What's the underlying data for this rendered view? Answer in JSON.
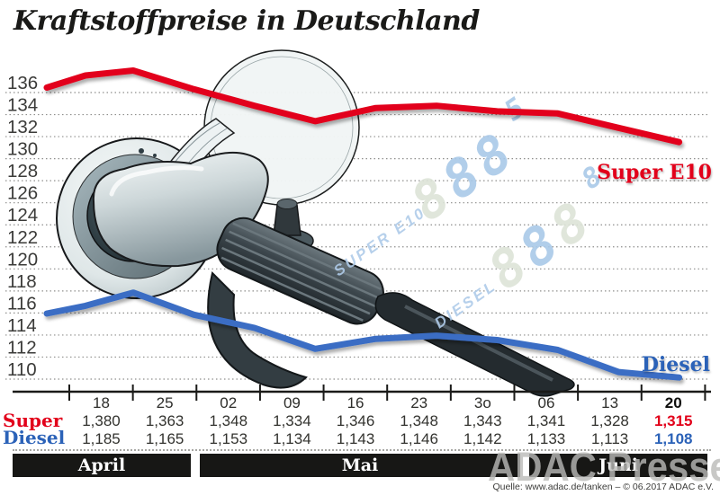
{
  "title": "Kraftstoffpreise in Deutschland",
  "source": "Quelle: www.adac.de/tanken – © 06.2017  ADAC e.V.",
  "brand_watermark": "ADAC Presse",
  "months": [
    {
      "label": "April",
      "dates": [
        "18",
        "25"
      ]
    },
    {
      "label": "Mai",
      "dates": [
        "02",
        "09",
        "16",
        "23",
        "3o"
      ]
    },
    {
      "label": "Juni",
      "dates": [
        "06",
        "13",
        "20"
      ]
    }
  ],
  "pump_display": {
    "line1_label": "SUPER E10",
    "line1_digits": "888",
    "line1_sup": "5",
    "line2_label": "DIESEL",
    "line2_digits": "888",
    "line2_sup": "8"
  },
  "table": {
    "dates": [
      "18",
      "25",
      "02",
      "09",
      "16",
      "23",
      "3o",
      "06",
      "13",
      "20"
    ],
    "rows": [
      {
        "label": "Super",
        "color": "#e2001a",
        "values": [
          "1,380",
          "1,363",
          "1,348",
          "1,334",
          "1,346",
          "1,348",
          "1,343",
          "1,341",
          "1,328",
          "1,315"
        ]
      },
      {
        "label": "Diesel",
        "color": "#2b62b8",
        "values": [
          "1,185",
          "1,165",
          "1,153",
          "1,134",
          "1,143",
          "1,146",
          "1,142",
          "1,133",
          "1,113",
          "1,108"
        ]
      }
    ]
  },
  "chart_data": {
    "type": "line",
    "title": "Kraftstoffpreise in Deutschland",
    "categories": [
      "18",
      "25",
      "02",
      "09",
      "16",
      "23",
      "3o",
      "06",
      "13",
      "20"
    ],
    "month_groups": [
      {
        "label": "April",
        "from": "18",
        "to": "25"
      },
      {
        "label": "Mai",
        "from": "02",
        "to": "3o"
      },
      {
        "label": "Juni",
        "from": "06",
        "to": "20"
      }
    ],
    "ylim": [
      110,
      136
    ],
    "y_tick_step": 2,
    "grid": "dotted-horizontal",
    "legend_position": "right-of-line-end",
    "series": [
      {
        "name": "Super E10",
        "color": "#e2001a",
        "values": [
          138.0,
          136.3,
          134.8,
          133.4,
          134.6,
          134.8,
          134.3,
          134.1,
          132.8,
          131.5
        ]
      },
      {
        "name": "Diesel",
        "color": "#3a6dc4",
        "values": [
          118.5,
          116.5,
          115.3,
          113.4,
          114.3,
          114.6,
          114.2,
          113.3,
          111.3,
          110.8
        ]
      }
    ],
    "lead_in_values": {
      "Super E10": [
        136.45,
        137.55
      ],
      "Diesel": [
        116.6,
        117.3
      ]
    }
  }
}
